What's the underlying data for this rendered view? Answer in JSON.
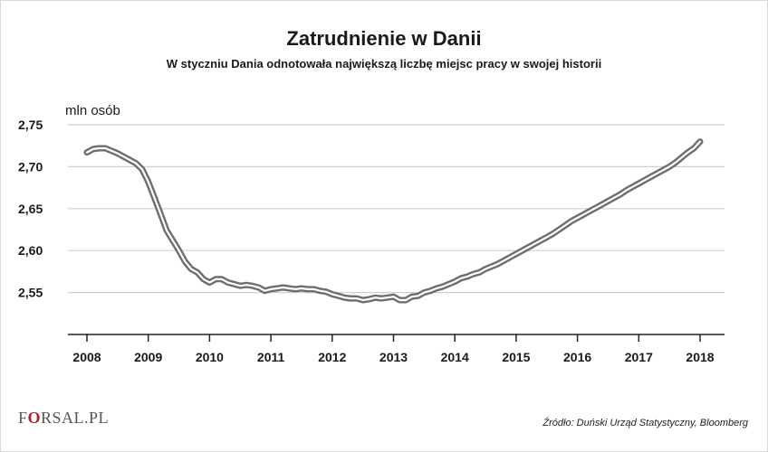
{
  "header": {
    "title": "Zatrudnienie w Danii",
    "subtitle": "W styczniu Dania odnotowała największą liczbę miejsc pracy w swojej historii"
  },
  "footer": {
    "logo_prefix": "F",
    "logo_mark": "O",
    "logo_suffix": "RSAL.PL",
    "source": "Źródło: Duński Urząd Statystyczny, Bloomberg"
  },
  "colors": {
    "line_outer": "#6e6e6e",
    "line_inner": "#ffffff",
    "grid": "#cfcfcf",
    "axis": "#222222"
  },
  "chart_data": {
    "type": "line",
    "title": "Zatrudnienie w Danii",
    "subtitle": "W styczniu Dania odnotowała największą liczbę miejsc pracy w swojej historii",
    "xlabel": "",
    "ylabel": "mln osób",
    "ylim": [
      2.5,
      2.75
    ],
    "xlim": [
      2008,
      2018
    ],
    "yticks": [
      2.55,
      2.6,
      2.65,
      2.7,
      2.75
    ],
    "ytick_labels": [
      "2,55",
      "2,60",
      "2,65",
      "2,70",
      "2,75"
    ],
    "xticks": [
      2008,
      2009,
      2010,
      2011,
      2012,
      2013,
      2014,
      2015,
      2016,
      2017,
      2018
    ],
    "xtick_labels": [
      "2008",
      "2009",
      "2010",
      "2011",
      "2012",
      "2013",
      "2014",
      "2015",
      "2016",
      "2017",
      "2018"
    ],
    "grid": true,
    "legend": "none",
    "series": [
      {
        "x": [
          2008.0,
          2008.1,
          2008.2,
          2008.3,
          2008.4,
          2008.5,
          2008.6,
          2008.7,
          2008.8,
          2008.9,
          2009.0,
          2009.1,
          2009.2,
          2009.3,
          2009.4,
          2009.5,
          2009.6,
          2009.7,
          2009.8,
          2009.9,
          2010.0,
          2010.1,
          2010.2,
          2010.3,
          2010.4,
          2010.5,
          2010.6,
          2010.7,
          2010.8,
          2010.9,
          2011.0,
          2011.1,
          2011.2,
          2011.3,
          2011.4,
          2011.5,
          2011.6,
          2011.7,
          2011.8,
          2011.9,
          2012.0,
          2012.1,
          2012.2,
          2012.3,
          2012.4,
          2012.5,
          2012.6,
          2012.7,
          2012.8,
          2012.9,
          2013.0,
          2013.1,
          2013.2,
          2013.3,
          2013.4,
          2013.5,
          2013.6,
          2013.7,
          2013.8,
          2013.9,
          2014.0,
          2014.1,
          2014.2,
          2014.3,
          2014.4,
          2014.5,
          2014.6,
          2014.7,
          2014.8,
          2014.9,
          2015.0,
          2015.1,
          2015.2,
          2015.3,
          2015.4,
          2015.5,
          2015.6,
          2015.7,
          2015.8,
          2015.9,
          2016.0,
          2016.1,
          2016.2,
          2016.3,
          2016.4,
          2016.5,
          2016.6,
          2016.7,
          2016.8,
          2016.9,
          2017.0,
          2017.1,
          2017.2,
          2017.3,
          2017.4,
          2017.5,
          2017.6,
          2017.7,
          2017.8,
          2017.9,
          2018.0
        ],
        "values": [
          2.717,
          2.721,
          2.722,
          2.722,
          2.719,
          2.716,
          2.712,
          2.708,
          2.704,
          2.697,
          2.682,
          2.663,
          2.644,
          2.624,
          2.612,
          2.6,
          2.587,
          2.578,
          2.574,
          2.566,
          2.562,
          2.566,
          2.566,
          2.562,
          2.56,
          2.558,
          2.559,
          2.558,
          2.556,
          2.552,
          2.554,
          2.555,
          2.556,
          2.555,
          2.554,
          2.555,
          2.554,
          2.554,
          2.552,
          2.551,
          2.548,
          2.546,
          2.544,
          2.543,
          2.543,
          2.541,
          2.542,
          2.544,
          2.543,
          2.544,
          2.545,
          2.541,
          2.541,
          2.545,
          2.546,
          2.55,
          2.552,
          2.555,
          2.557,
          2.56,
          2.563,
          2.567,
          2.569,
          2.572,
          2.574,
          2.578,
          2.581,
          2.584,
          2.588,
          2.592,
          2.596,
          2.6,
          2.604,
          2.608,
          2.612,
          2.616,
          2.62,
          2.625,
          2.63,
          2.635,
          2.639,
          2.643,
          2.647,
          2.651,
          2.655,
          2.659,
          2.663,
          2.667,
          2.672,
          2.676,
          2.68,
          2.684,
          2.688,
          2.692,
          2.696,
          2.7,
          2.705,
          2.711,
          2.717,
          2.722,
          2.73
        ]
      }
    ]
  }
}
